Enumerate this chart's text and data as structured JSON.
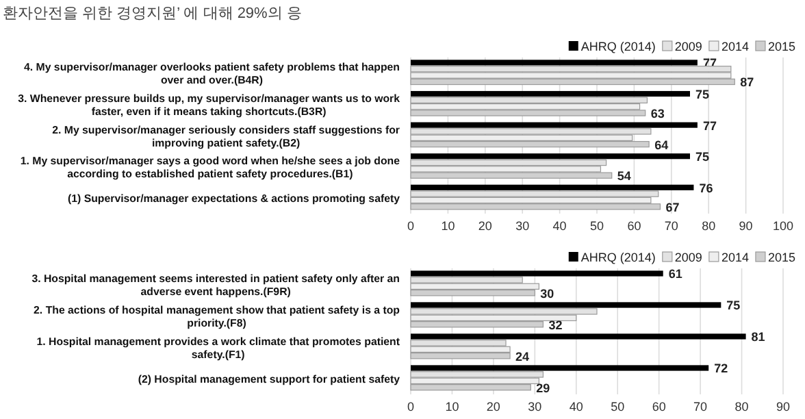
{
  "chart_data": [
    {
      "type": "bar",
      "orientation": "horizontal",
      "annotations": [
        "환자안전을 위한 경영지원’ 에 대해 29%의 응"
      ],
      "categories": [
        "4. My supervisor/manager overlooks patient safety problems that happen over and over.(B4R)",
        "3. Whenever pressure builds up, my supervisor/manager wants us to work faster, even if it means taking shortcuts.(B3R)",
        "2. My supervisor/manager seriously considers staff suggestions for improving patient safety.(B2)",
        "1. My supervisor/manager says a good word when he/she sees a job done according to established patient safety procedures.(B1)",
        "(1) Supervisor/manager expectations & actions promoting safety"
      ],
      "series": [
        {
          "name": "AHRQ (2014)",
          "color": "#000000",
          "values": [
            77,
            75,
            77,
            75,
            76
          ],
          "value_labels": [
            "77",
            "75",
            "77",
            "75",
            "76"
          ]
        },
        {
          "name": "2009",
          "color": "#e2e2e2",
          "values": [
            86,
            63.5,
            64.5,
            52.5,
            66.5
          ]
        },
        {
          "name": "2014",
          "color": "#eeeeee",
          "values": [
            86,
            61.5,
            59.5,
            51,
            64.5
          ]
        },
        {
          "name": "2015",
          "color": "#cfcfcf",
          "values": [
            87,
            63,
            64,
            54,
            67
          ],
          "value_labels": [
            "87",
            "63",
            "64",
            "54",
            "67"
          ]
        }
      ],
      "xlim": [
        0,
        100
      ],
      "xticks": [
        0,
        10,
        20,
        30,
        40,
        50,
        60,
        70,
        80,
        90,
        100
      ],
      "grid": "x",
      "legend": "top right"
    },
    {
      "type": "bar",
      "orientation": "horizontal",
      "categories": [
        "3. Hospital management seems interested in patient safety only after an adverse event happens.(F9R)",
        "2. The actions of hospital management show that patient safety is a top priority.(F8)",
        "1. Hospital management provides a work climate that promotes patient safety.(F1)",
        "(2) Hospital management support for patient safety"
      ],
      "series": [
        {
          "name": "AHRQ (2014)",
          "color": "#000000",
          "values": [
            61,
            75,
            81,
            72
          ],
          "value_labels": [
            "61",
            "75",
            "81",
            "72"
          ]
        },
        {
          "name": "2009",
          "color": "#e2e2e2",
          "values": [
            27,
            45,
            23,
            32
          ]
        },
        {
          "name": "2014",
          "color": "#eeeeee",
          "values": [
            31,
            40,
            24,
            31
          ]
        },
        {
          "name": "2015",
          "color": "#cfcfcf",
          "values": [
            30,
            32,
            24,
            29
          ],
          "value_labels": [
            "30",
            "32",
            "24",
            "29"
          ]
        }
      ],
      "xlim": [
        0,
        90
      ],
      "xticks": [
        0,
        10,
        20,
        30,
        40,
        50,
        60,
        70,
        80,
        90
      ],
      "grid": "x",
      "legend": "top right"
    }
  ]
}
